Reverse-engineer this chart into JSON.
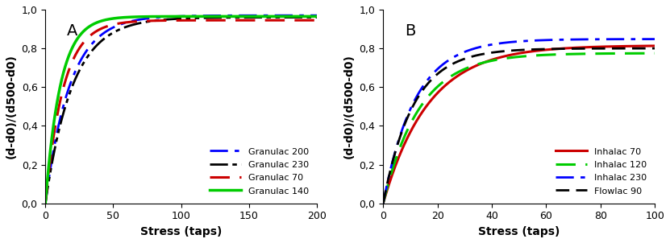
{
  "panel_A": {
    "label": "A",
    "xlabel": "Stress (taps)",
    "ylabel": "(d-d0)/(d500-d0)",
    "xlim": [
      0,
      200
    ],
    "ylim": [
      0,
      1.0
    ],
    "xticks": [
      0,
      50,
      100,
      150,
      200
    ],
    "yticks": [
      0.0,
      0.2,
      0.4,
      0.6,
      0.8,
      1.0
    ],
    "curves": [
      {
        "label": "Granulac 200",
        "color": "#0000FF",
        "linestyle": "dashdot",
        "linewidth": 2.0,
        "k": 0.055,
        "ymax": 0.97
      },
      {
        "label": "Granulac 230",
        "color": "#000000",
        "linestyle": "dashdotdotted",
        "linewidth": 2.0,
        "k": 0.05,
        "ymax": 0.96
      },
      {
        "label": "Granulac 70",
        "color": "#CC0000",
        "linestyle": "dashed",
        "linewidth": 2.2,
        "k": 0.075,
        "ymax": 0.945
      },
      {
        "label": "Granulac 140",
        "color": "#00CC00",
        "linestyle": "solid",
        "linewidth": 2.5,
        "k": 0.09,
        "ymax": 0.965
      }
    ]
  },
  "panel_B": {
    "label": "B",
    "xlabel": "Stress (taps)",
    "ylabel": "(d-d0)/(d500-d0)",
    "xlim": [
      0,
      100
    ],
    "ylim": [
      0,
      1.0
    ],
    "xticks": [
      0,
      20,
      40,
      60,
      80,
      100
    ],
    "yticks": [
      0.0,
      0.2,
      0.4,
      0.6,
      0.8,
      1.0
    ],
    "curves": [
      {
        "label": "Inhalac 70",
        "color": "#CC0000",
        "linestyle": "solid",
        "linewidth": 2.2,
        "k": 0.06,
        "ymax": 0.815
      },
      {
        "label": "Inhalac 120",
        "color": "#00CC00",
        "linestyle": "dashed",
        "linewidth": 2.2,
        "k": 0.075,
        "ymax": 0.775
      },
      {
        "label": "Inhalac 230",
        "color": "#0000FF",
        "linestyle": "dashdot",
        "linewidth": 2.0,
        "k": 0.085,
        "ymax": 0.848
      },
      {
        "label": "Flowlac 90",
        "color": "#000000",
        "linestyle": "dashed2",
        "linewidth": 2.0,
        "k": 0.09,
        "ymax": 0.8
      }
    ]
  },
  "legend_fontsize": 8,
  "label_fontsize": 10,
  "tick_fontsize": 9,
  "panel_label_fontsize": 14
}
